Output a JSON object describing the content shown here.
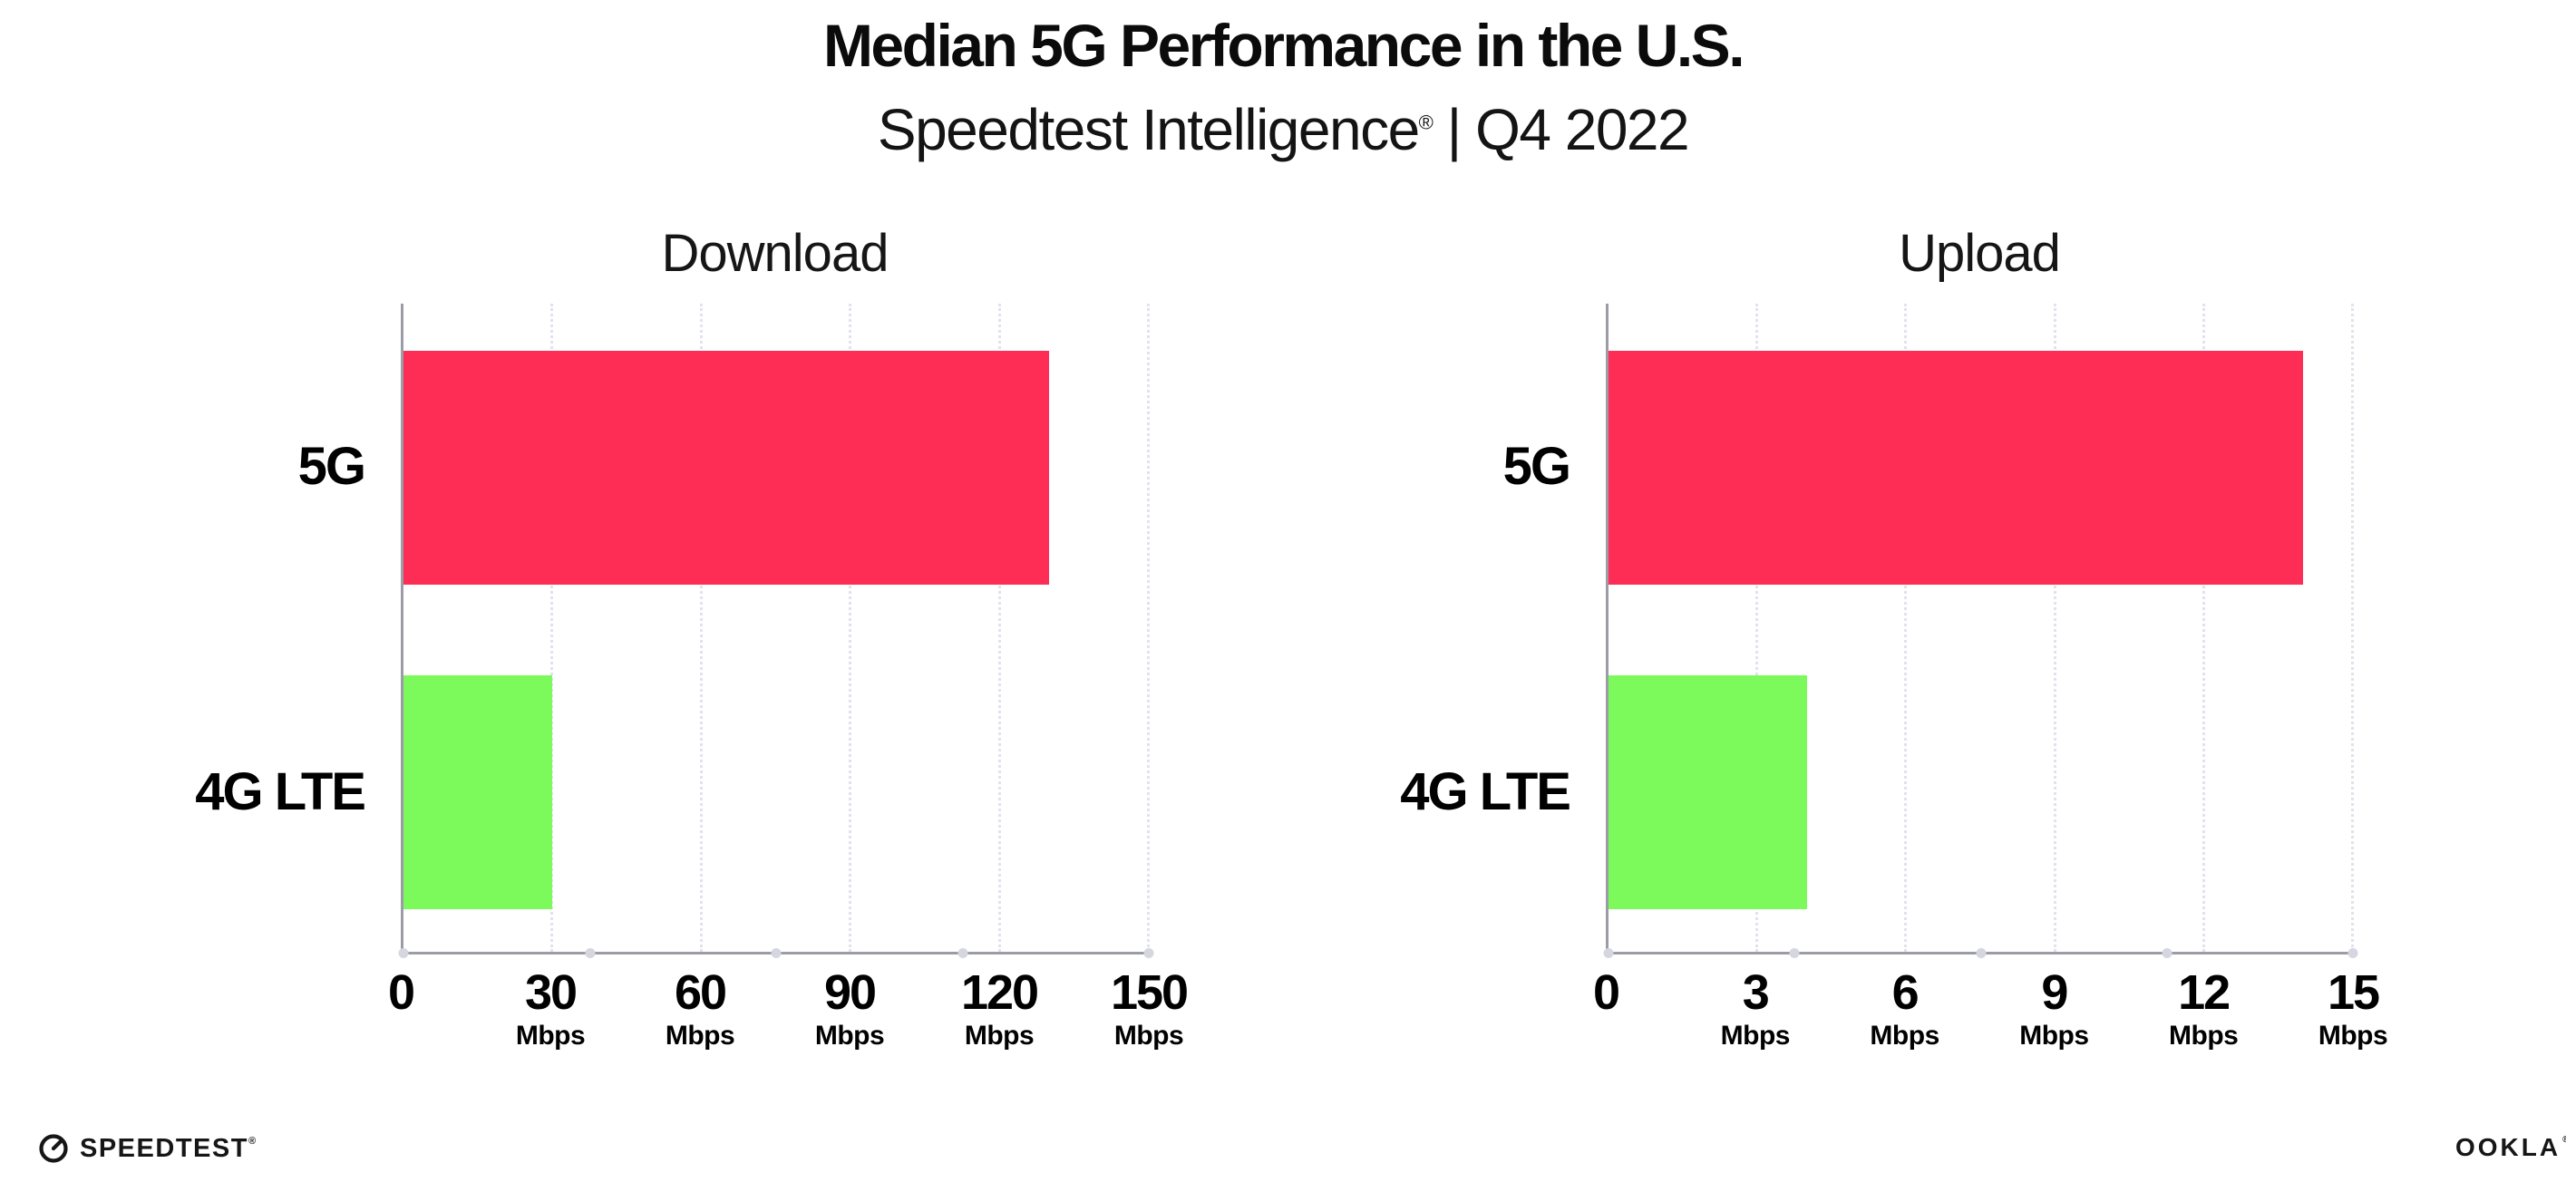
{
  "header": {
    "title": "Median 5G Performance in the U.S.",
    "subtitle_brand": "Speedtest Intelligence",
    "subtitle_mark": "®",
    "subtitle_rest": " | Q4 2022"
  },
  "chart_data": [
    {
      "type": "bar",
      "orientation": "horizontal",
      "title": "Download",
      "categories": [
        "5G",
        "4G LTE"
      ],
      "values": [
        130,
        30
      ],
      "unit": "Mbps",
      "xlim": [
        0,
        150
      ],
      "tick_labels": [
        "0",
        "30",
        "60",
        "90",
        "120",
        "150"
      ],
      "colors": [
        "#FD2D55",
        "#7CFA5C"
      ],
      "grid": "vertical-dotted",
      "legend": false
    },
    {
      "type": "bar",
      "orientation": "horizontal",
      "title": "Upload",
      "categories": [
        "5G",
        "4G LTE"
      ],
      "values": [
        14,
        4
      ],
      "unit": "Mbps",
      "xlim": [
        0,
        15
      ],
      "tick_labels": [
        "0",
        "3",
        "6",
        "9",
        "12",
        "15"
      ],
      "colors": [
        "#FD2D55",
        "#7CFA5C"
      ],
      "grid": "vertical-dotted",
      "legend": false
    }
  ],
  "colors": {
    "bar_5g": "#FD2D55",
    "bar_4g_lte": "#7CFA5C",
    "axis": "#9C9CA6",
    "gridline": "#E2E2EC",
    "text": "#0B0B0B"
  },
  "footer": {
    "speedtest_label": "SPEEDTEST",
    "speedtest_mark": "®",
    "ookla_label": "OOKLA",
    "ookla_mark": "®"
  }
}
